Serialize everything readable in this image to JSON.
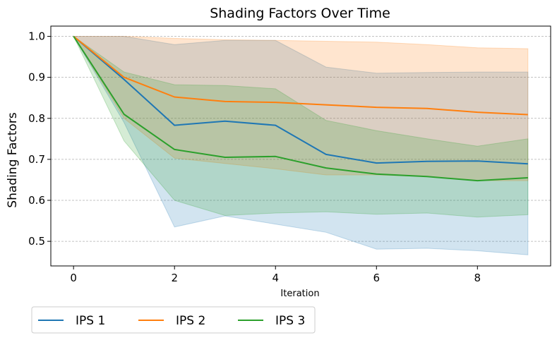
{
  "chart_data": {
    "type": "line",
    "title": "Shading Factors Over Time",
    "xlabel": "Iteration",
    "ylabel": "Shading Factors",
    "xlim": [
      -0.45,
      9.45
    ],
    "ylim": [
      0.44,
      1.025
    ],
    "xticks": [
      0,
      2,
      4,
      6,
      8
    ],
    "yticks": [
      0.5,
      0.6,
      0.7,
      0.8,
      0.9,
      1.0
    ],
    "ytick_labels": [
      "0.5",
      "0.6",
      "0.7",
      "0.8",
      "0.9",
      "1.0"
    ],
    "grid": "horizontal-dashed",
    "legend_position": "bottom-left-outside",
    "x": [
      0,
      1,
      2,
      3,
      4,
      5,
      6,
      7,
      8,
      9
    ],
    "series": [
      {
        "name": "IPS 1",
        "color": "#1f77b4",
        "values": [
          1.0,
          0.895,
          0.783,
          0.793,
          0.783,
          0.712,
          0.691,
          0.695,
          0.696,
          0.689
        ],
        "upper": [
          1.0,
          1.0,
          0.98,
          0.99,
          0.99,
          0.925,
          0.91,
          0.912,
          0.913,
          0.913
        ],
        "lower": [
          1.0,
          0.79,
          0.535,
          0.562,
          0.542,
          0.522,
          0.481,
          0.483,
          0.477,
          0.467
        ]
      },
      {
        "name": "IPS 2",
        "color": "#ff7f0e",
        "values": [
          1.0,
          0.9,
          0.852,
          0.841,
          0.839,
          0.833,
          0.827,
          0.824,
          0.815,
          0.809
        ],
        "upper": [
          1.0,
          1.0,
          0.995,
          0.992,
          0.99,
          0.988,
          0.986,
          0.98,
          0.972,
          0.97
        ],
        "lower": [
          1.0,
          0.8,
          0.703,
          0.69,
          0.677,
          0.662,
          0.662,
          0.658,
          0.648,
          0.648
        ]
      },
      {
        "name": "IPS 3",
        "color": "#2ca02c",
        "values": [
          1.0,
          0.81,
          0.724,
          0.705,
          0.707,
          0.679,
          0.664,
          0.658,
          0.648,
          0.655
        ],
        "upper": [
          1.0,
          0.913,
          0.882,
          0.88,
          0.872,
          0.795,
          0.77,
          0.75,
          0.732,
          0.75
        ],
        "lower": [
          1.0,
          0.745,
          0.6,
          0.563,
          0.569,
          0.572,
          0.566,
          0.569,
          0.559,
          0.565
        ]
      }
    ]
  }
}
